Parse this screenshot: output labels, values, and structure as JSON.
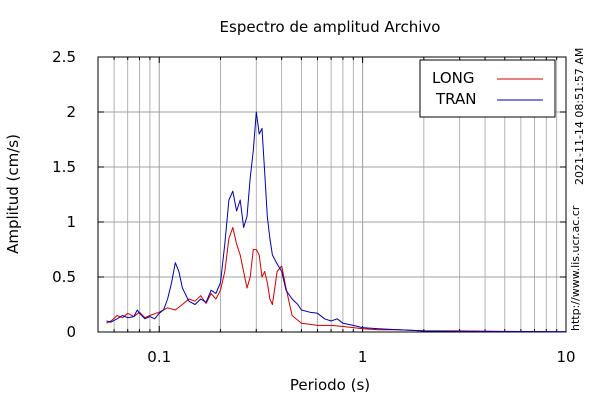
{
  "chart_data": {
    "type": "line",
    "title": "Espectro de amplitud Archivo",
    "xlabel": "Periodo (s)",
    "ylabel": "Amplitud (cm/s)",
    "x_scale": "log",
    "xlim": [
      0.05,
      10
    ],
    "ylim": [
      0,
      2.5
    ],
    "grid": true,
    "legend_position": "top-right",
    "x_ticks": [
      {
        "value": 0.1,
        "label": "0.1"
      },
      {
        "value": 1,
        "label": "1"
      },
      {
        "value": 10,
        "label": "10"
      }
    ],
    "y_ticks": [
      {
        "value": 0,
        "label": "0"
      },
      {
        "value": 0.5,
        "label": "0.5"
      },
      {
        "value": 1,
        "label": "1"
      },
      {
        "value": 1.5,
        "label": "1.5"
      },
      {
        "value": 2,
        "label": "2"
      },
      {
        "value": 2.5,
        "label": "2.5"
      }
    ],
    "series": [
      {
        "name": "LONG",
        "color": "#cc0000",
        "points": [
          [
            0.055,
            0.08
          ],
          [
            0.058,
            0.1
          ],
          [
            0.062,
            0.15
          ],
          [
            0.066,
            0.13
          ],
          [
            0.07,
            0.17
          ],
          [
            0.075,
            0.14
          ],
          [
            0.08,
            0.18
          ],
          [
            0.085,
            0.13
          ],
          [
            0.09,
            0.15
          ],
          [
            0.1,
            0.18
          ],
          [
            0.11,
            0.22
          ],
          [
            0.12,
            0.2
          ],
          [
            0.13,
            0.25
          ],
          [
            0.14,
            0.3
          ],
          [
            0.15,
            0.28
          ],
          [
            0.16,
            0.33
          ],
          [
            0.17,
            0.26
          ],
          [
            0.18,
            0.35
          ],
          [
            0.19,
            0.3
          ],
          [
            0.2,
            0.38
          ],
          [
            0.21,
            0.55
          ],
          [
            0.22,
            0.85
          ],
          [
            0.23,
            0.95
          ],
          [
            0.24,
            0.8
          ],
          [
            0.25,
            0.7
          ],
          [
            0.26,
            0.55
          ],
          [
            0.27,
            0.4
          ],
          [
            0.28,
            0.5
          ],
          [
            0.29,
            0.75
          ],
          [
            0.3,
            0.75
          ],
          [
            0.31,
            0.7
          ],
          [
            0.32,
            0.5
          ],
          [
            0.33,
            0.55
          ],
          [
            0.34,
            0.45
          ],
          [
            0.35,
            0.3
          ],
          [
            0.36,
            0.25
          ],
          [
            0.37,
            0.4
          ],
          [
            0.38,
            0.55
          ],
          [
            0.4,
            0.6
          ],
          [
            0.42,
            0.4
          ],
          [
            0.45,
            0.15
          ],
          [
            0.5,
            0.08
          ],
          [
            0.55,
            0.07
          ],
          [
            0.6,
            0.06
          ],
          [
            0.7,
            0.06
          ],
          [
            0.8,
            0.05
          ],
          [
            0.9,
            0.04
          ],
          [
            1,
            0.03
          ],
          [
            1.2,
            0.02
          ],
          [
            1.5,
            0.02
          ],
          [
            2,
            0.01
          ],
          [
            3,
            0.01
          ],
          [
            5,
            0.005
          ],
          [
            10,
            0.003
          ]
        ]
      },
      {
        "name": "TRAN",
        "color": "#0000aa",
        "points": [
          [
            0.055,
            0.1
          ],
          [
            0.058,
            0.09
          ],
          [
            0.062,
            0.12
          ],
          [
            0.066,
            0.15
          ],
          [
            0.07,
            0.13
          ],
          [
            0.075,
            0.14
          ],
          [
            0.078,
            0.2
          ],
          [
            0.08,
            0.17
          ],
          [
            0.085,
            0.12
          ],
          [
            0.09,
            0.14
          ],
          [
            0.095,
            0.12
          ],
          [
            0.1,
            0.17
          ],
          [
            0.105,
            0.2
          ],
          [
            0.11,
            0.3
          ],
          [
            0.115,
            0.45
          ],
          [
            0.12,
            0.63
          ],
          [
            0.125,
            0.55
          ],
          [
            0.13,
            0.4
          ],
          [
            0.14,
            0.28
          ],
          [
            0.15,
            0.25
          ],
          [
            0.16,
            0.3
          ],
          [
            0.17,
            0.27
          ],
          [
            0.18,
            0.38
          ],
          [
            0.19,
            0.35
          ],
          [
            0.2,
            0.45
          ],
          [
            0.21,
            0.8
          ],
          [
            0.22,
            1.2
          ],
          [
            0.23,
            1.28
          ],
          [
            0.24,
            1.1
          ],
          [
            0.25,
            1.2
          ],
          [
            0.26,
            0.95
          ],
          [
            0.27,
            1.05
          ],
          [
            0.28,
            1.4
          ],
          [
            0.29,
            1.65
          ],
          [
            0.3,
            2.0
          ],
          [
            0.31,
            1.8
          ],
          [
            0.32,
            1.85
          ],
          [
            0.33,
            1.45
          ],
          [
            0.34,
            1.05
          ],
          [
            0.35,
            0.85
          ],
          [
            0.36,
            0.7
          ],
          [
            0.38,
            0.62
          ],
          [
            0.4,
            0.55
          ],
          [
            0.42,
            0.38
          ],
          [
            0.45,
            0.3
          ],
          [
            0.48,
            0.25
          ],
          [
            0.5,
            0.2
          ],
          [
            0.55,
            0.18
          ],
          [
            0.6,
            0.17
          ],
          [
            0.65,
            0.12
          ],
          [
            0.7,
            0.1
          ],
          [
            0.75,
            0.12
          ],
          [
            0.8,
            0.08
          ],
          [
            0.9,
            0.06
          ],
          [
            1,
            0.04
          ],
          [
            1.2,
            0.03
          ],
          [
            1.5,
            0.02
          ],
          [
            2,
            0.01
          ],
          [
            3,
            0.005
          ],
          [
            5,
            0.004
          ],
          [
            10,
            0.002
          ]
        ]
      }
    ]
  },
  "side_labels": {
    "timestamp": "2021-11-14 08:51:57 AM",
    "url": "http://www.lis.ucr.ac.cr"
  }
}
